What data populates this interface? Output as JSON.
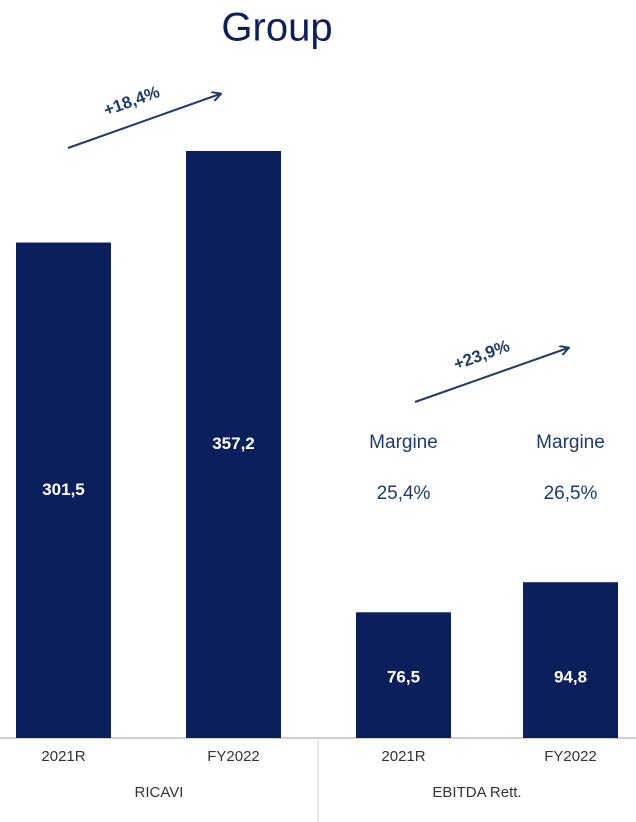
{
  "chart_data": {
    "type": "bar",
    "title": "Group",
    "color": "#0b1f5c",
    "groups": [
      {
        "name": "RICAVI",
        "categories": [
          "2021R",
          "FY2022"
        ],
        "values": [
          301.5,
          357.2
        ],
        "value_labels": [
          "301,5",
          "357,2"
        ],
        "growth": "+18,4%"
      },
      {
        "name": "EBITDA Rett.",
        "categories": [
          "2021R",
          "FY2022"
        ],
        "values": [
          76.5,
          94.8
        ],
        "value_labels": [
          "76,5",
          "94,8"
        ],
        "growth": "+23,9%",
        "margin_title": "Margine",
        "margins": [
          25.4,
          26.5
        ],
        "margin_labels": [
          "25,4%",
          "26,5%"
        ]
      }
    ]
  }
}
